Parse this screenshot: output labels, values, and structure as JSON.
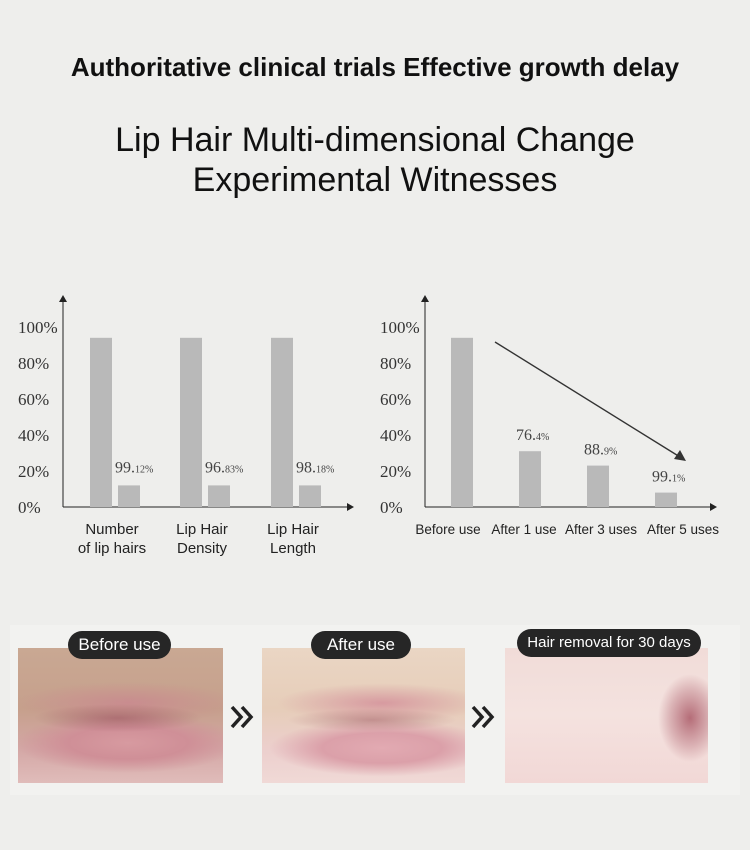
{
  "headline": "Authoritative clinical trials Effective growth delay",
  "title_line1": "Lip Hair Multi-dimensional Change",
  "title_line2": "Experimental Witnesses",
  "chart_data": [
    {
      "type": "bar",
      "y_ticks": [
        "100%",
        "80%",
        "60%",
        "40%",
        "20%",
        "0%"
      ],
      "ylim": [
        0,
        100
      ],
      "categories": [
        {
          "lines": [
            "Number",
            "of lip hairs"
          ],
          "before": 94,
          "after": 12,
          "label_main": "99.",
          "label_sub": "12%"
        },
        {
          "lines": [
            "Lip Hair",
            "Density"
          ],
          "before": 94,
          "after": 12,
          "label_main": "96.",
          "label_sub": "83%"
        },
        {
          "lines": [
            "Lip Hair",
            "Length"
          ],
          "before": 94,
          "after": 12,
          "label_main": "98.",
          "label_sub": "18%"
        }
      ],
      "bar_color": "#b9b9b9"
    },
    {
      "type": "bar",
      "y_ticks": [
        "100%",
        "80%",
        "60%",
        "40%",
        "20%",
        "0%"
      ],
      "ylim": [
        0,
        100
      ],
      "categories": [
        {
          "label": "Before use",
          "value": 94,
          "label_main": "",
          "label_sub": ""
        },
        {
          "label": "After 1 use",
          "value": 31,
          "label_main": "76.",
          "label_sub": "4%"
        },
        {
          "label": "After 3 uses",
          "value": 23,
          "label_main": "88.",
          "label_sub": "9%"
        },
        {
          "label": "After 5 uses",
          "value": 8,
          "label_main": "99.",
          "label_sub": "1%"
        }
      ],
      "trend_arrow": "decreasing",
      "bar_color": "#b9b9b9"
    }
  ],
  "photos": {
    "before_label": "Before use",
    "after_label": "After use",
    "days_label": "Hair removal for 30 days",
    "arrow_icon": "double-chevron-right-icon"
  }
}
